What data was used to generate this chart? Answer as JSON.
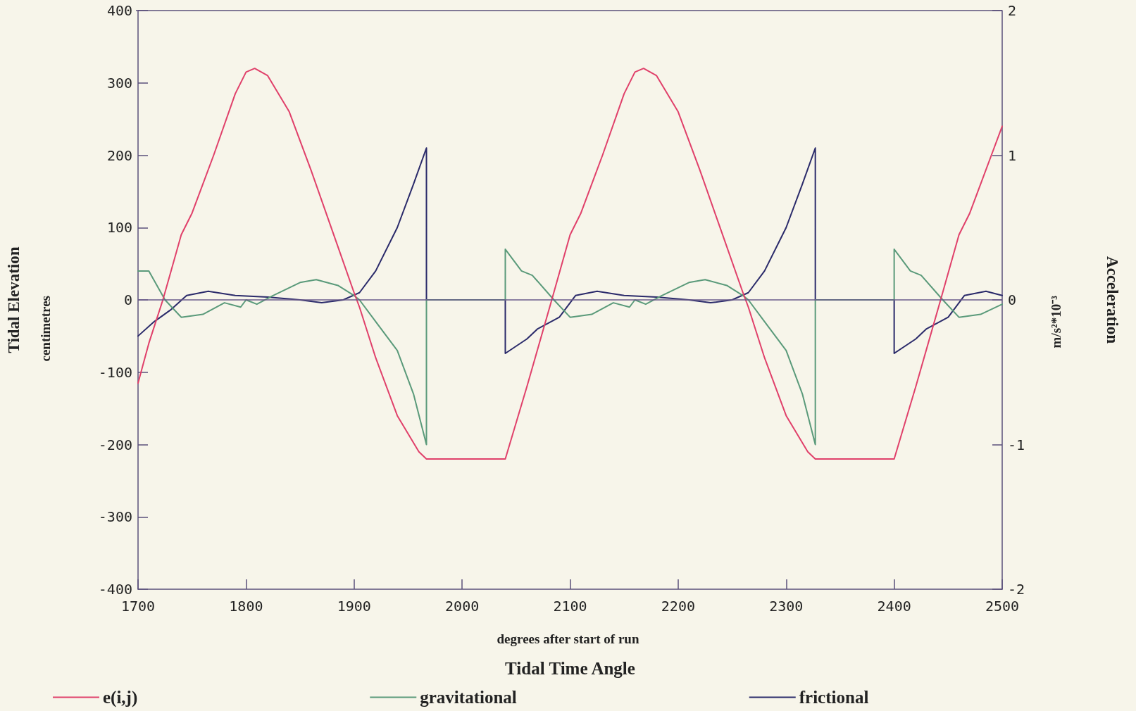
{
  "chart_data": {
    "type": "line",
    "xlabel": "Tidal Time Angle",
    "ylabel": "Tidal Elevation",
    "y2label": "Acceleration",
    "annotations": [
      "degrees after start of run",
      "centimetres",
      "m/s²*10⁻³"
    ],
    "xlim": [
      1700,
      2500
    ],
    "xticks": [
      1700,
      1800,
      1900,
      2000,
      2100,
      2200,
      2300,
      2400,
      2500
    ],
    "ylim": [
      -400,
      400
    ],
    "yticks": [
      -400,
      -300,
      -200,
      -100,
      0,
      100,
      200,
      300,
      400
    ],
    "y2lim": [
      -2,
      2
    ],
    "y2ticks": [
      -2,
      -1,
      0,
      1,
      2
    ],
    "grid": false,
    "legend": "bottom",
    "marker": "none",
    "line_style": "solid",
    "ref_lines": [
      {
        "axis": "y",
        "value": 0,
        "color": "#6a5a8a"
      }
    ],
    "series": [
      {
        "name": "e(i,j)",
        "color": "#e0406a",
        "x": [
          1700,
          1710,
          1723,
          1740,
          1750,
          1770,
          1790,
          1800,
          1808,
          1820,
          1840,
          1860,
          1880,
          1900,
          1905,
          1920,
          1940,
          1960,
          1967,
          2040,
          2060,
          2083,
          2100,
          2110,
          2130,
          2150,
          2160,
          2168,
          2180,
          2200,
          2220,
          2240,
          2260,
          2265,
          2280,
          2300,
          2320,
          2327,
          2400,
          2420,
          2443,
          2460,
          2470,
          2490,
          2500
        ],
        "values": [
          -115,
          -60,
          0,
          90,
          120,
          200,
          285,
          315,
          320,
          310,
          260,
          180,
          95,
          10,
          -10,
          -80,
          -160,
          -210,
          -220,
          -220,
          -120,
          0,
          90,
          120,
          200,
          285,
          315,
          320,
          310,
          260,
          180,
          95,
          10,
          -10,
          -80,
          -160,
          -210,
          -220,
          -220,
          -120,
          0,
          90,
          120,
          200,
          240
        ]
      },
      {
        "name": "gravitational",
        "color": "#5a9a7a",
        "axis": "y2",
        "x": [
          1700,
          1710,
          1725,
          1740,
          1760,
          1780,
          1795,
          1800,
          1810,
          1825,
          1850,
          1865,
          1885,
          1900,
          1905,
          1920,
          1940,
          1955,
          1967,
          1967,
          2040,
          2040,
          2055,
          2065,
          2085,
          2100,
          2120,
          2140,
          2155,
          2160,
          2170,
          2185,
          2210,
          2225,
          2245,
          2260,
          2265,
          2280,
          2300,
          2315,
          2327,
          2327,
          2400,
          2400,
          2415,
          2425,
          2445,
          2460,
          2480,
          2500
        ],
        "values": [
          0.2,
          0.2,
          0,
          -0.12,
          -0.1,
          -0.02,
          -0.05,
          0,
          -0.03,
          0.03,
          0.12,
          0.14,
          0.1,
          0.03,
          0,
          -0.15,
          -0.35,
          -0.65,
          -1.0,
          0,
          0,
          0.35,
          0.2,
          0.17,
          0,
          -0.12,
          -0.1,
          -0.02,
          -0.05,
          0,
          -0.03,
          0.03,
          0.12,
          0.14,
          0.1,
          0.03,
          0,
          -0.15,
          -0.35,
          -0.65,
          -1.0,
          0,
          0,
          0.35,
          0.2,
          0.17,
          0,
          -0.12,
          -0.1,
          -0.03
        ]
      },
      {
        "name": "frictional",
        "color": "#2a2a6a",
        "axis": "y2",
        "x": [
          1700,
          1715,
          1730,
          1745,
          1765,
          1790,
          1820,
          1850,
          1870,
          1890,
          1905,
          1920,
          1940,
          1955,
          1967,
          1967,
          2040,
          2040,
          2060,
          2070,
          2090,
          2105,
          2125,
          2150,
          2180,
          2210,
          2230,
          2250,
          2265,
          2280,
          2300,
          2315,
          2327,
          2327,
          2400,
          2400,
          2420,
          2430,
          2450,
          2465,
          2485,
          2500
        ],
        "values": [
          -0.25,
          -0.15,
          -0.07,
          0.03,
          0.06,
          0.03,
          0.02,
          0,
          -0.02,
          0,
          0.05,
          0.2,
          0.5,
          0.8,
          1.05,
          0,
          0,
          -0.37,
          -0.27,
          -0.2,
          -0.12,
          0.03,
          0.06,
          0.03,
          0.02,
          0,
          -0.02,
          0,
          0.05,
          0.2,
          0.5,
          0.8,
          1.05,
          0,
          0,
          -0.37,
          -0.27,
          -0.2,
          -0.12,
          0.03,
          0.06,
          0.03
        ]
      }
    ]
  }
}
